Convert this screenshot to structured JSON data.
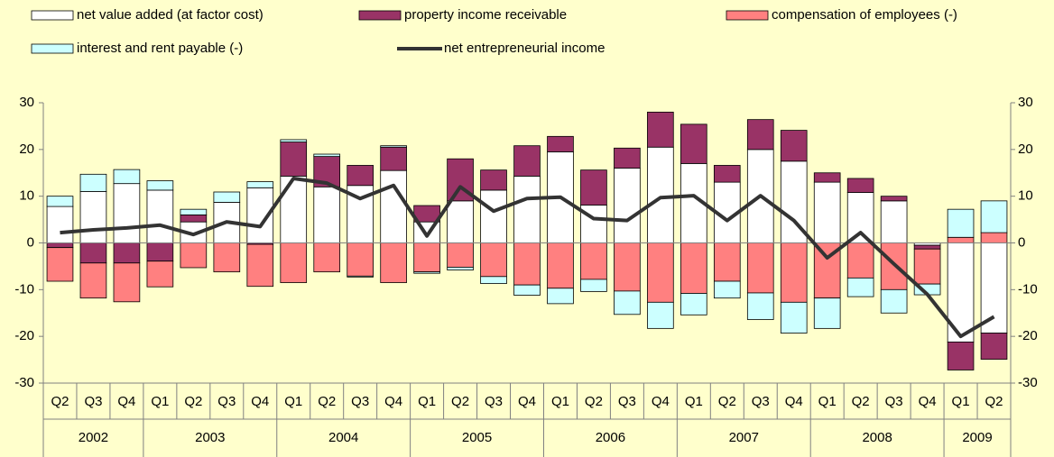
{
  "chart_data": {
    "type": "bar",
    "stacked": true,
    "categories": [
      "Q2",
      "Q3",
      "Q4",
      "Q1",
      "Q2",
      "Q3",
      "Q4",
      "Q1",
      "Q2",
      "Q3",
      "Q4",
      "Q1",
      "Q2",
      "Q3",
      "Q4",
      "Q1",
      "Q2",
      "Q3",
      "Q4",
      "Q1",
      "Q2",
      "Q3",
      "Q4",
      "Q1",
      "Q2",
      "Q3",
      "Q4",
      "Q1",
      "Q2"
    ],
    "years": [
      "2002",
      "2002",
      "2002",
      "2003",
      "2003",
      "2003",
      "2003",
      "2004",
      "2004",
      "2004",
      "2004",
      "2005",
      "2005",
      "2005",
      "2005",
      "2006",
      "2006",
      "2006",
      "2006",
      "2007",
      "2007",
      "2007",
      "2007",
      "2008",
      "2008",
      "2008",
      "2008",
      "2009",
      "2009"
    ],
    "series": [
      {
        "name": "net value added (at factor cost)",
        "color": "#ffffff",
        "values": [
          7.8,
          11,
          12.7,
          11.3,
          4.5,
          8.7,
          11.8,
          14.3,
          12,
          12.3,
          15.5,
          4.5,
          9,
          11.3,
          14.3,
          19.5,
          8.1,
          16,
          20.5,
          17,
          13,
          20,
          17.5,
          13,
          10.8,
          9,
          -0.5,
          -21.2,
          -19.3
        ]
      },
      {
        "name": "property income receivable",
        "color": "#993366",
        "values": [
          -1,
          -4.3,
          -4.3,
          -3.9,
          1.5,
          0,
          -0.3,
          7.3,
          6.5,
          4.3,
          5,
          3.5,
          9,
          4.3,
          6.5,
          3.3,
          7.5,
          4.3,
          7.5,
          8.4,
          3.6,
          6.4,
          6.6,
          2,
          3,
          1,
          -0.8,
          -6,
          -5.6
        ]
      },
      {
        "name": "compensation of employees (-)",
        "color": "#ff8080",
        "values": [
          -7.2,
          -7.5,
          -8.3,
          -5.5,
          -5.3,
          -6.2,
          -9,
          -8.5,
          -6.2,
          -7.1,
          -8.5,
          -6.2,
          -5.2,
          -7.2,
          -9,
          -9.7,
          -7.8,
          -10.3,
          -12.7,
          -10.8,
          -8.2,
          -10.7,
          -12.7,
          -11.8,
          -7.5,
          -10,
          -7.5,
          1.2,
          2.2
        ]
      },
      {
        "name": "interest and rent payable (-)",
        "color": "#ccffff",
        "values": [
          2.2,
          3.7,
          3,
          2,
          1.2,
          2.2,
          1.3,
          0.5,
          0.5,
          -0.2,
          0.3,
          -0.3,
          -0.6,
          -1.5,
          -2.2,
          -3.3,
          -2.6,
          -5,
          -5.6,
          -4.6,
          -3.6,
          -5.7,
          -6.6,
          -6.5,
          -4,
          -5,
          -2.3,
          6,
          6.8
        ]
      },
      {
        "name": "net entrepreneurial income",
        "color": "#333333",
        "type": "line",
        "values": [
          2.2,
          2.8,
          3.2,
          3.8,
          1.8,
          4.5,
          3.5,
          13.8,
          12.8,
          9.5,
          12.3,
          1.5,
          12,
          6.8,
          9.5,
          9.8,
          5.2,
          4.8,
          9.7,
          10.1,
          4.8,
          10.1,
          4.8,
          -3.2,
          2.2,
          -4.5,
          -11,
          -20,
          -15.8
        ]
      }
    ],
    "ylim": [
      -30,
      30
    ],
    "yticks": [
      -30,
      -20,
      -10,
      0,
      10,
      20,
      30
    ],
    "y2lim": [
      -30,
      30
    ],
    "y2ticks": [
      -30,
      -20,
      -10,
      0,
      10,
      20,
      30
    ],
    "background": "#ffffcc"
  }
}
